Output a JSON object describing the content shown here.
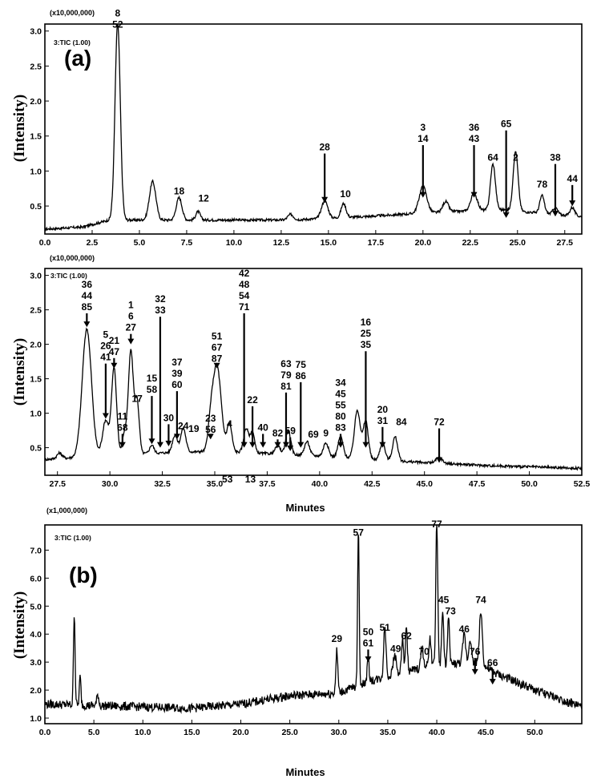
{
  "chart_data": [
    {
      "type": "line",
      "panel_label": "(a)",
      "trace_label": "3:TIC (1.00)",
      "multiplier": "(x10,000,000)",
      "ylabel": "(Intensity)",
      "xlabel": "",
      "xlim": [
        0,
        28.4
      ],
      "ylim": [
        0.1,
        3.1
      ],
      "x_ticks": [
        "0.0",
        "2.5",
        "5.0",
        "7.5",
        "10.0",
        "12.5",
        "15.0",
        "17.5",
        "20.0",
        "22.5",
        "25.0",
        "27.5"
      ],
      "y_ticks": [
        "0.5",
        "1.0",
        "1.5",
        "2.0",
        "2.5",
        "3.0"
      ],
      "baseline": [
        [
          0,
          0.17
        ],
        [
          2,
          0.2
        ],
        [
          3.4,
          0.3
        ],
        [
          5,
          0.3
        ],
        [
          10,
          0.3
        ],
        [
          13,
          0.3
        ],
        [
          17,
          0.35
        ],
        [
          20,
          0.4
        ],
        [
          24,
          0.45
        ],
        [
          28.4,
          0.35
        ]
      ],
      "peaks": [
        [
          3.85,
          2.8,
          0.14
        ],
        [
          5.7,
          0.55,
          0.17
        ],
        [
          7.1,
          0.32,
          0.15
        ],
        [
          8.1,
          0.12,
          0.12
        ],
        [
          13.0,
          0.08,
          0.15
        ],
        [
          14.8,
          0.25,
          0.17
        ],
        [
          15.8,
          0.2,
          0.13
        ],
        [
          20.0,
          0.38,
          0.2
        ],
        [
          21.2,
          0.15,
          0.15
        ],
        [
          22.7,
          0.25,
          0.17
        ],
        [
          23.7,
          0.65,
          0.13
        ],
        [
          24.9,
          0.85,
          0.13
        ],
        [
          26.3,
          0.25,
          0.12
        ],
        [
          27.0,
          0.1,
          0.12
        ],
        [
          27.9,
          0.12,
          0.12
        ]
      ],
      "labels": [
        {
          "text": "8\n52",
          "x": 3.85,
          "tip": 3.0,
          "len": 0
        },
        {
          "text": "18",
          "x": 7.1,
          "tip": 0.62,
          "len": 0
        },
        {
          "text": "12",
          "x": 8.4,
          "tip": 0.52,
          "len": 0
        },
        {
          "text": "28",
          "x": 14.8,
          "tip": 0.55,
          "len": 0.7
        },
        {
          "text": "10",
          "x": 15.9,
          "tip": 0.58,
          "len": 0
        },
        {
          "text": "3\n14",
          "x": 20.0,
          "tip": 0.62,
          "len": 0.75
        },
        {
          "text": "36\n43",
          "x": 22.7,
          "tip": 0.62,
          "len": 0.75
        },
        {
          "text": "65",
          "x": 24.4,
          "tip": 0.33,
          "len": 1.25
        },
        {
          "text": "2",
          "x": 24.9,
          "tip": 1.1,
          "len": 0
        },
        {
          "text": "64",
          "x": 23.7,
          "tip": 1.1,
          "len": 0
        },
        {
          "text": "78",
          "x": 26.3,
          "tip": 0.72,
          "len": 0
        },
        {
          "text": "38",
          "x": 27.0,
          "tip": 0.35,
          "len": 0.75
        },
        {
          "text": "44",
          "x": 27.9,
          "tip": 0.5,
          "len": 0.3
        }
      ]
    },
    {
      "type": "line",
      "trace_label": "3:TIC (1.00)",
      "multiplier": "(x10,000,000)",
      "ylabel": "(Intensity)",
      "xlabel": "Minutes",
      "xlim": [
        26.9,
        52.5
      ],
      "ylim": [
        0.1,
        3.1
      ],
      "x_ticks": [
        "27.5",
        "30.0",
        "32.5",
        "35.0",
        "37.5",
        "40.0",
        "42.5",
        "45.0",
        "47.5",
        "50.0",
        "52.5"
      ],
      "y_ticks": [
        "0.5",
        "1.0",
        "1.5",
        "2.0",
        "2.5",
        "3.0"
      ],
      "baseline": [
        [
          26.9,
          0.33
        ],
        [
          28,
          0.35
        ],
        [
          30,
          0.4
        ],
        [
          35,
          0.45
        ],
        [
          40,
          0.38
        ],
        [
          44,
          0.3
        ],
        [
          48,
          0.24
        ],
        [
          52.5,
          0.2
        ]
      ],
      "peaks": [
        [
          27.6,
          0.08,
          0.12
        ],
        [
          28.9,
          1.85,
          0.22
        ],
        [
          29.8,
          0.5,
          0.15
        ],
        [
          30.2,
          1.25,
          0.12
        ],
        [
          30.7,
          0.3,
          0.1
        ],
        [
          31.0,
          1.5,
          0.12
        ],
        [
          31.3,
          0.75,
          0.1
        ],
        [
          32.0,
          0.12,
          0.1
        ],
        [
          33.1,
          0.25,
          0.12
        ],
        [
          33.5,
          0.35,
          0.12
        ],
        [
          34.8,
          0.3,
          0.12
        ],
        [
          35.1,
          1.25,
          0.2
        ],
        [
          35.7,
          0.4,
          0.12
        ],
        [
          36.5,
          0.35,
          0.12
        ],
        [
          36.8,
          0.3,
          0.1
        ],
        [
          38.0,
          0.12,
          0.12
        ],
        [
          38.5,
          0.35,
          0.12
        ],
        [
          39.4,
          0.2,
          0.12
        ],
        [
          40.3,
          0.2,
          0.12
        ],
        [
          41.0,
          0.3,
          0.12
        ],
        [
          41.8,
          0.7,
          0.14
        ],
        [
          42.2,
          0.55,
          0.12
        ],
        [
          43.0,
          0.25,
          0.12
        ],
        [
          43.6,
          0.35,
          0.12
        ],
        [
          45.7,
          0.08,
          0.15
        ]
      ],
      "labels": [
        {
          "text": "36\n44\n85",
          "x": 28.9,
          "tip": 2.25,
          "len": 0.2
        },
        {
          "text": "5\n26\n41",
          "x": 29.8,
          "tip": 0.92,
          "len": 0.8
        },
        {
          "text": "21\n47",
          "x": 30.2,
          "tip": 1.65,
          "len": 0.15
        },
        {
          "text": "11\n68",
          "x": 30.6,
          "tip": 0.5,
          "len": 0.2
        },
        {
          "text": "1\n6\n27",
          "x": 31.0,
          "tip": 2.0,
          "len": 0.15
        },
        {
          "text": "17",
          "x": 31.3,
          "tip": 1.12,
          "len": 0
        },
        {
          "text": "15\n58",
          "x": 32.0,
          "tip": 0.55,
          "len": 0.7
        },
        {
          "text": "32\n33",
          "x": 32.4,
          "tip": 0.5,
          "len": 1.9
        },
        {
          "text": "30",
          "x": 32.8,
          "tip": 0.52,
          "len": 0.32
        },
        {
          "text": "37\n39\n60",
          "x": 33.2,
          "tip": 0.62,
          "len": 0.7
        },
        {
          "text": "24",
          "x": 33.5,
          "tip": 0.72,
          "len": 0
        },
        {
          "text": "19",
          "x": 34.0,
          "tip": 0.68,
          "len": 0
        },
        {
          "text": "23\n56",
          "x": 34.8,
          "tip": 0.62,
          "len": 0.05
        },
        {
          "text": "51\n67\n87",
          "x": 35.1,
          "tip": 1.65,
          "len": 0.05
        },
        {
          "text": "4",
          "x": 35.7,
          "tip": 0.75,
          "len": 0
        },
        {
          "text": "42\n48\n54\n71",
          "x": 36.4,
          "tip": 0.5,
          "len": 1.95
        },
        {
          "text": "22",
          "x": 36.8,
          "tip": 0.5,
          "len": 0.6
        },
        {
          "text": "40",
          "x": 37.3,
          "tip": 0.5,
          "len": 0.2
        },
        {
          "text": "82",
          "x": 38.0,
          "tip": 0.5,
          "len": 0.12
        },
        {
          "text": "63\n79\n81",
          "x": 38.4,
          "tip": 0.5,
          "len": 0.8
        },
        {
          "text": "59",
          "x": 38.6,
          "tip": 0.45,
          "len": 0.2
        },
        {
          "text": "75\n86",
          "x": 39.1,
          "tip": 0.5,
          "len": 0.95
        },
        {
          "text": "69",
          "x": 39.7,
          "tip": 0.6,
          "len": 0
        },
        {
          "text": "9",
          "x": 40.3,
          "tip": 0.62,
          "len": 0
        },
        {
          "text": "34\n45\n55\n80\n83",
          "x": 41.0,
          "tip": 0.5,
          "len": 0.2
        },
        {
          "text": "16\n25\n35",
          "x": 42.2,
          "tip": 0.5,
          "len": 1.4
        },
        {
          "text": "20\n31",
          "x": 43.0,
          "tip": 0.5,
          "len": 0.3
        },
        {
          "text": "84",
          "x": 43.9,
          "tip": 0.78,
          "len": 0
        },
        {
          "text": "72",
          "x": 45.7,
          "tip": 0.28,
          "len": 0.5
        },
        {
          "text": "53",
          "x": 35.6,
          "tip": -0.05,
          "len": 0
        },
        {
          "text": "13",
          "x": 36.7,
          "tip": -0.05,
          "len": 0
        }
      ]
    },
    {
      "type": "line",
      "panel_label": "(b)",
      "trace_label": "3:TIC (1.00)",
      "multiplier": "(x1,000,000)",
      "ylabel": "(Intensity)",
      "xlabel": "Minutes",
      "xlim": [
        0,
        54.8
      ],
      "ylim": [
        0.8,
        7.9
      ],
      "x_ticks": [
        "0.0",
        "5.0",
        "10.0",
        "15.0",
        "20.0",
        "25.0",
        "30.0",
        "35.0",
        "40.0",
        "45.0",
        "50.0"
      ],
      "y_ticks": [
        "1.0",
        "2.0",
        "3.0",
        "4.0",
        "5.0",
        "6.0",
        "7.0"
      ],
      "baseline": [
        [
          0,
          1.5
        ],
        [
          10,
          1.4
        ],
        [
          15,
          1.35
        ],
        [
          20,
          1.5
        ],
        [
          25,
          1.8
        ],
        [
          30,
          1.9
        ],
        [
          33,
          2.3
        ],
        [
          36,
          2.6
        ],
        [
          40,
          2.9
        ],
        [
          44,
          3.0
        ],
        [
          46,
          2.6
        ],
        [
          50,
          2.0
        ],
        [
          54.8,
          1.4
        ]
      ],
      "peaks": [
        [
          3.0,
          3.3,
          0.08
        ],
        [
          3.6,
          1.0,
          0.08
        ],
        [
          5.4,
          0.4,
          0.1
        ],
        [
          29.8,
          1.5,
          0.1
        ],
        [
          32.0,
          5.6,
          0.08
        ],
        [
          33.0,
          0.8,
          0.1
        ],
        [
          34.7,
          1.8,
          0.12
        ],
        [
          35.7,
          0.7,
          0.15
        ],
        [
          36.5,
          1.2,
          0.1
        ],
        [
          36.9,
          1.5,
          0.1
        ],
        [
          38.5,
          0.8,
          0.12
        ],
        [
          39.3,
          1.0,
          0.12
        ],
        [
          40.0,
          5.2,
          0.1
        ],
        [
          40.6,
          1.9,
          0.1
        ],
        [
          41.2,
          1.6,
          0.1
        ],
        [
          42.8,
          1.0,
          0.15
        ],
        [
          43.4,
          0.9,
          0.12
        ],
        [
          44.5,
          1.9,
          0.15
        ]
      ],
      "labels": [
        {
          "text": "29",
          "x": 29.8,
          "tip": 3.6,
          "len": 0
        },
        {
          "text": "57",
          "x": 32.0,
          "tip": 7.4,
          "len": 0
        },
        {
          "text": "50\n61",
          "x": 33.0,
          "tip": 3.0,
          "len": 0.45
        },
        {
          "text": "51",
          "x": 34.7,
          "tip": 4.0,
          "len": 0
        },
        {
          "text": "49",
          "x": 35.8,
          "tip": 3.25,
          "len": 0
        },
        {
          "text": "62",
          "x": 36.9,
          "tip": 3.7,
          "len": 0
        },
        {
          "text": "70",
          "x": 38.7,
          "tip": 3.15,
          "len": 0
        },
        {
          "text": "77",
          "x": 40.0,
          "tip": 7.7,
          "len": 0
        },
        {
          "text": "45",
          "x": 40.7,
          "tip": 5.0,
          "len": 0
        },
        {
          "text": "73",
          "x": 41.4,
          "tip": 4.6,
          "len": 0
        },
        {
          "text": "46",
          "x": 42.8,
          "tip": 3.95,
          "len": 0
        },
        {
          "text": "74",
          "x": 44.5,
          "tip": 5.0,
          "len": 0
        },
        {
          "text": "76",
          "x": 43.9,
          "tip": 2.55,
          "len": 0.6
        },
        {
          "text": "66",
          "x": 45.7,
          "tip": 2.2,
          "len": 0.55
        }
      ]
    }
  ]
}
